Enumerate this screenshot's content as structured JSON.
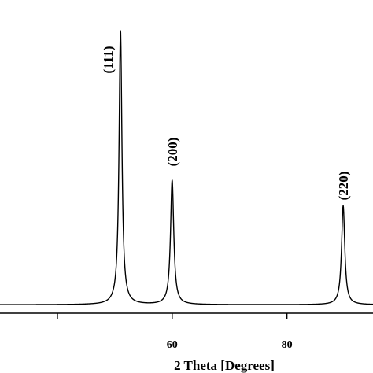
{
  "chart_data": {
    "type": "line",
    "xlabel": "2 Theta [Degrees]",
    "ylabel": "",
    "title": "",
    "xlim": [
      30,
      95
    ],
    "ylim": [
      0,
      100
    ],
    "x_ticks": [
      40,
      60,
      80
    ],
    "x_tick_labels": [
      "",
      "60",
      "80"
    ],
    "grid": false,
    "legend": "none",
    "line_color": "#000000",
    "baseline": 3,
    "peaks": [
      {
        "label": "(111)",
        "x": 51.0,
        "y": 100
      },
      {
        "label": "(200)",
        "x": 60.0,
        "y": 47
      },
      {
        "label": "(220)",
        "x": 89.8,
        "y": 38
      }
    ]
  }
}
